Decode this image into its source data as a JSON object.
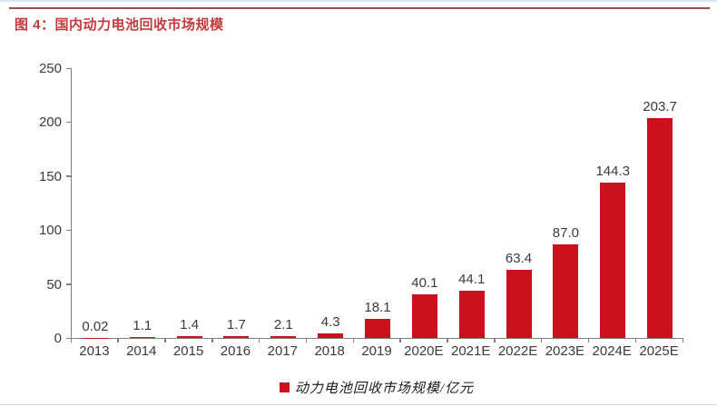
{
  "header": {
    "title": "图 4：国内动力电池回收市场规模"
  },
  "chart_data": {
    "type": "bar",
    "title": "国内动力电池回收市场规模",
    "categories": [
      "2013",
      "2014",
      "2015",
      "2016",
      "2017",
      "2018",
      "2019",
      "2020E",
      "2021E",
      "2022E",
      "2023E",
      "2024E",
      "2025E"
    ],
    "values": [
      0.02,
      1.1,
      1.4,
      1.7,
      2.1,
      4.3,
      18.1,
      40.1,
      44.1,
      63.4,
      87.0,
      144.3,
      203.7
    ],
    "value_labels": [
      "0.02",
      "1.1",
      "1.4",
      "1.7",
      "2.1",
      "4.3",
      "18.1",
      "40.1",
      "44.1",
      "63.4",
      "87.0",
      "144.3",
      "203.7"
    ],
    "xlabel": "",
    "ylabel": "",
    "ylim": [
      0,
      250
    ],
    "yticks": [
      0,
      50,
      100,
      150,
      200,
      250
    ],
    "grid": false,
    "legend_position": "bottom",
    "legend": "动力电池回收市场规模/亿元",
    "bar_color": "#c9101b"
  },
  "colors": {
    "bar_red": "#c9101b",
    "title_red": "#c43a3c",
    "rule_red": "#a3484f",
    "axis_gray": "#7f7f7f",
    "text_dark": "#3a3a3a"
  }
}
